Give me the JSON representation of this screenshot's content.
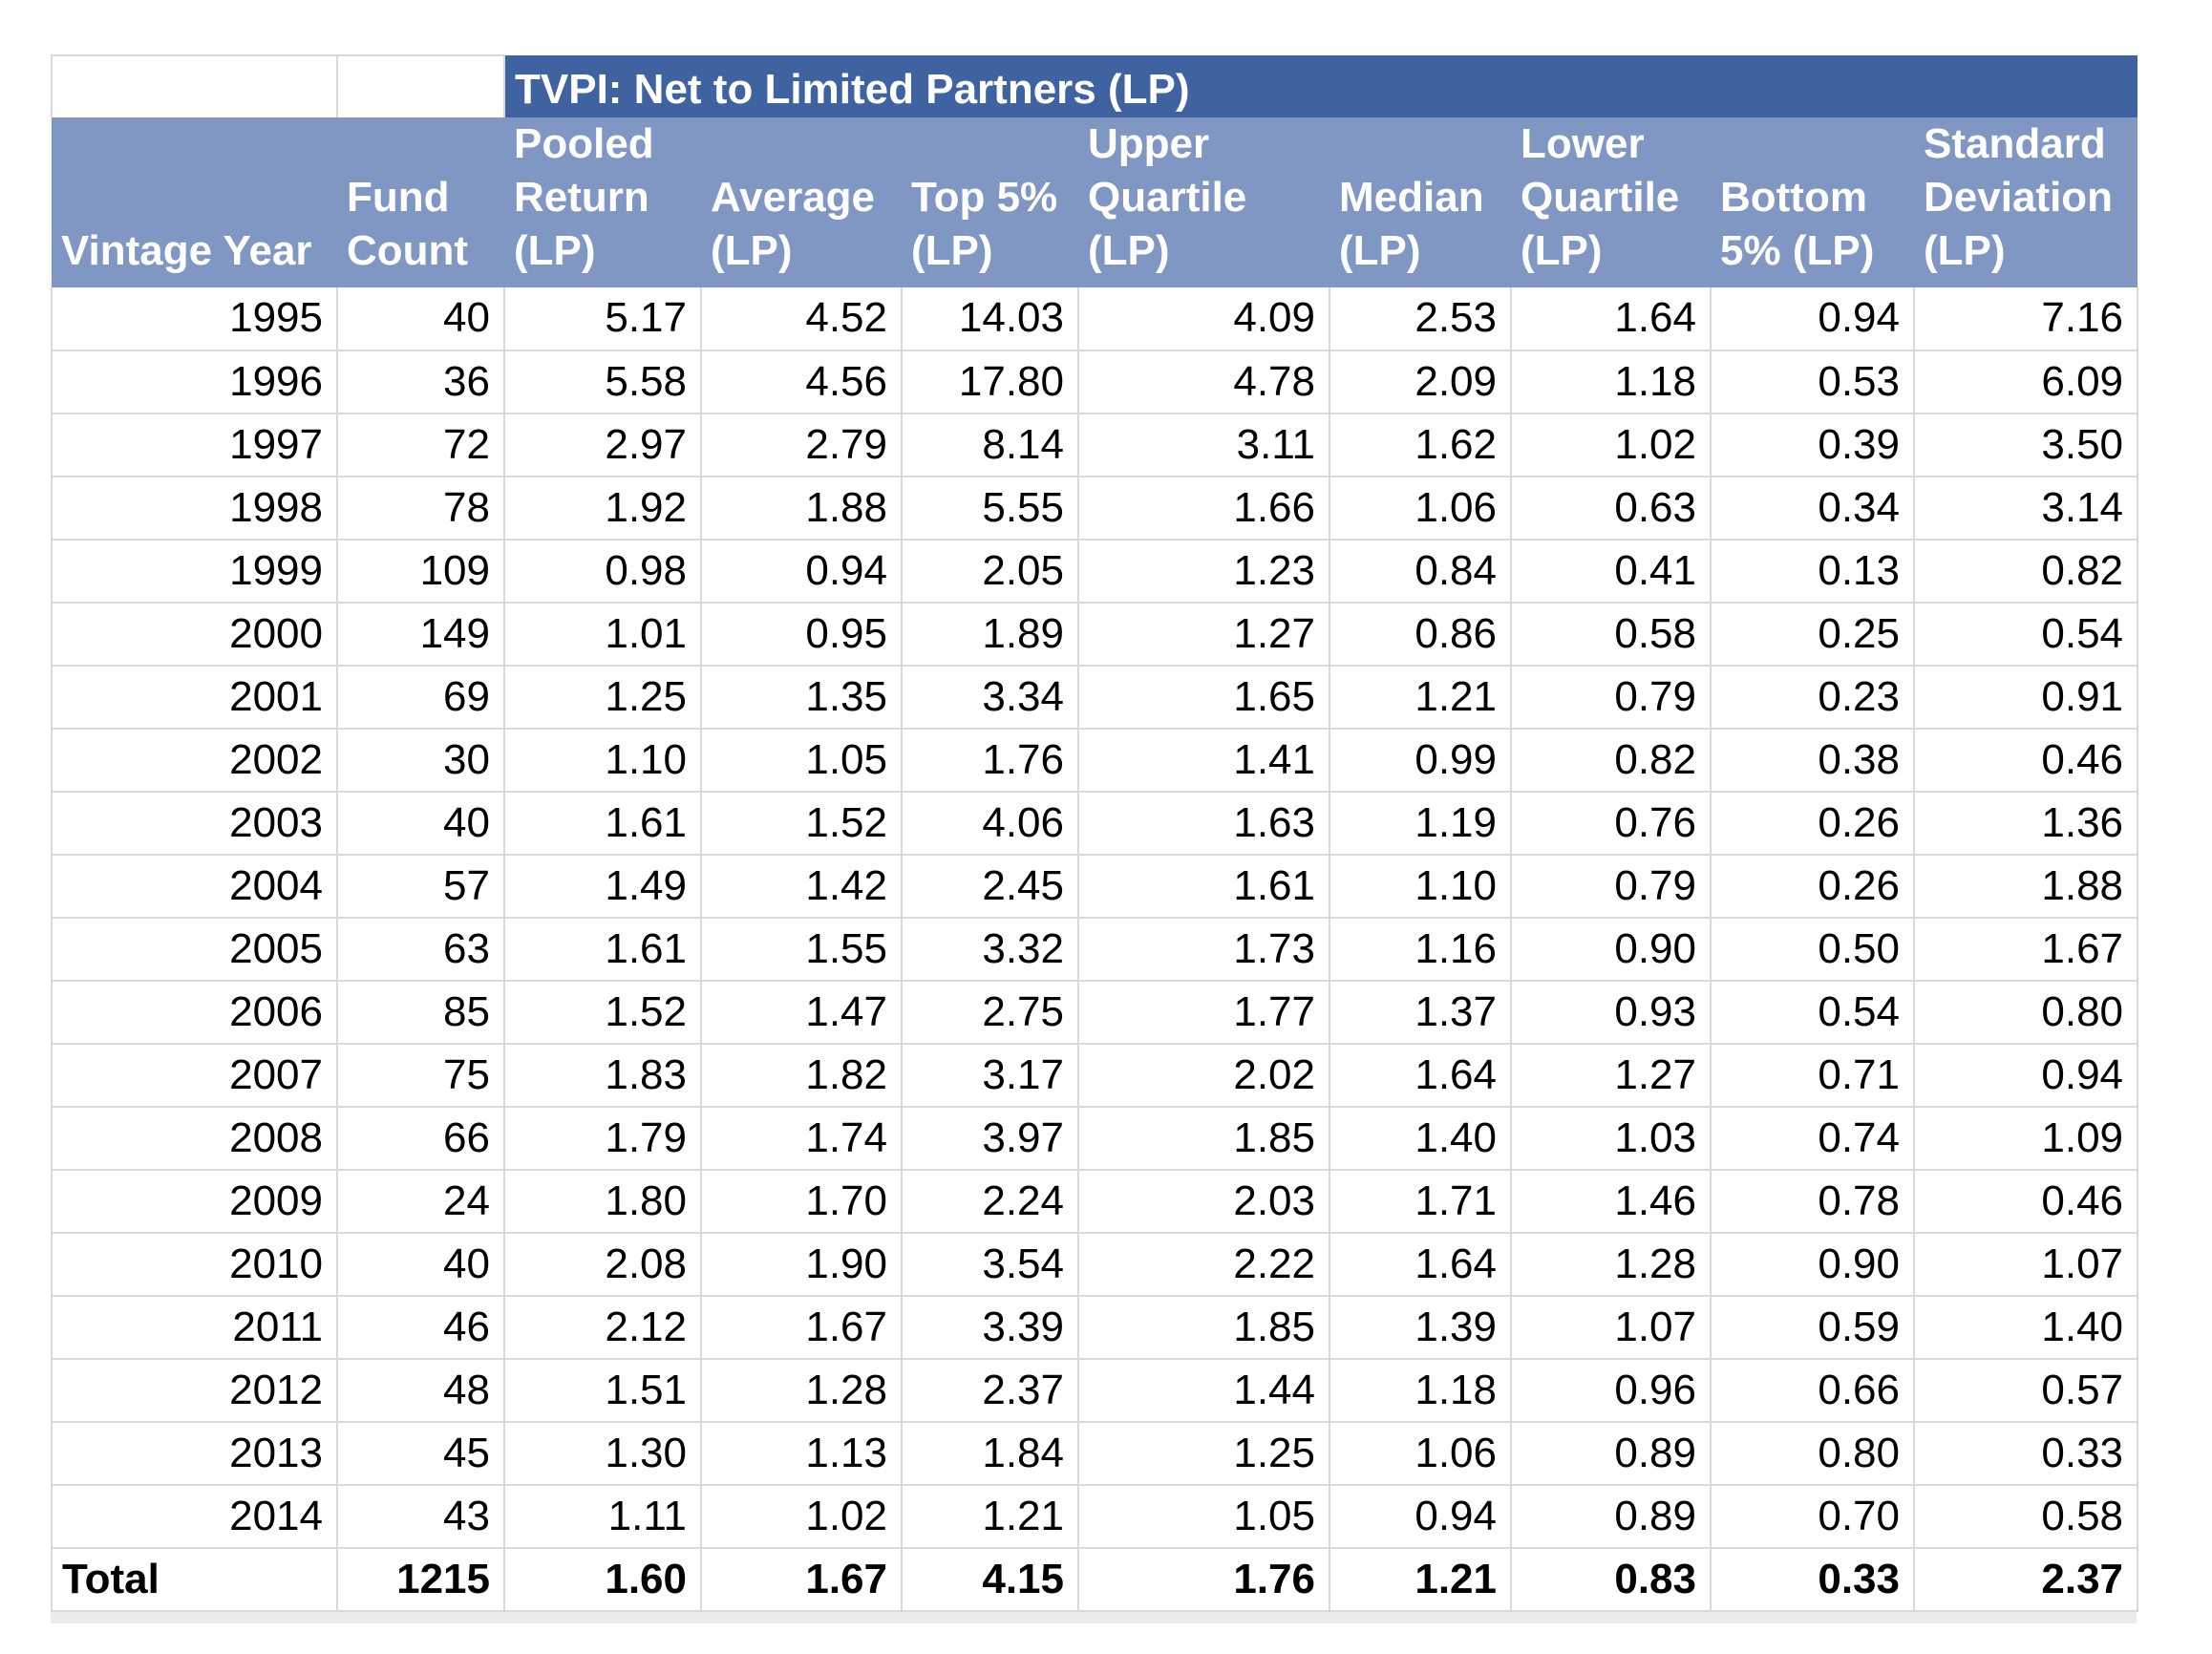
{
  "table": {
    "title": "TVPI: Net to Limited Partners (LP)",
    "columns": [
      {
        "key": "vintage_year",
        "label": "Vintage Year"
      },
      {
        "key": "fund_count",
        "label": "Fund Count"
      },
      {
        "key": "pooled_return_lp",
        "label": "Pooled Return (LP)"
      },
      {
        "key": "average_lp",
        "label": "Average (LP)"
      },
      {
        "key": "top_5_lp",
        "label": "Top 5% (LP)"
      },
      {
        "key": "upper_quartile_lp",
        "label": "Upper Quartile (LP)"
      },
      {
        "key": "median_lp",
        "label": "Median (LP)"
      },
      {
        "key": "lower_quartile_lp",
        "label": "Lower Quartile (LP)"
      },
      {
        "key": "bottom_5_lp",
        "label": "Bottom 5% (LP)"
      },
      {
        "key": "standard_deviation_lp",
        "label": "Standard Deviation (LP)"
      }
    ],
    "rows": [
      [
        "1995",
        "40",
        "5.17",
        "4.52",
        "14.03",
        "4.09",
        "2.53",
        "1.64",
        "0.94",
        "7.16"
      ],
      [
        "1996",
        "36",
        "5.58",
        "4.56",
        "17.80",
        "4.78",
        "2.09",
        "1.18",
        "0.53",
        "6.09"
      ],
      [
        "1997",
        "72",
        "2.97",
        "2.79",
        "8.14",
        "3.11",
        "1.62",
        "1.02",
        "0.39",
        "3.50"
      ],
      [
        "1998",
        "78",
        "1.92",
        "1.88",
        "5.55",
        "1.66",
        "1.06",
        "0.63",
        "0.34",
        "3.14"
      ],
      [
        "1999",
        "109",
        "0.98",
        "0.94",
        "2.05",
        "1.23",
        "0.84",
        "0.41",
        "0.13",
        "0.82"
      ],
      [
        "2000",
        "149",
        "1.01",
        "0.95",
        "1.89",
        "1.27",
        "0.86",
        "0.58",
        "0.25",
        "0.54"
      ],
      [
        "2001",
        "69",
        "1.25",
        "1.35",
        "3.34",
        "1.65",
        "1.21",
        "0.79",
        "0.23",
        "0.91"
      ],
      [
        "2002",
        "30",
        "1.10",
        "1.05",
        "1.76",
        "1.41",
        "0.99",
        "0.82",
        "0.38",
        "0.46"
      ],
      [
        "2003",
        "40",
        "1.61",
        "1.52",
        "4.06",
        "1.63",
        "1.19",
        "0.76",
        "0.26",
        "1.36"
      ],
      [
        "2004",
        "57",
        "1.49",
        "1.42",
        "2.45",
        "1.61",
        "1.10",
        "0.79",
        "0.26",
        "1.88"
      ],
      [
        "2005",
        "63",
        "1.61",
        "1.55",
        "3.32",
        "1.73",
        "1.16",
        "0.90",
        "0.50",
        "1.67"
      ],
      [
        "2006",
        "85",
        "1.52",
        "1.47",
        "2.75",
        "1.77",
        "1.37",
        "0.93",
        "0.54",
        "0.80"
      ],
      [
        "2007",
        "75",
        "1.83",
        "1.82",
        "3.17",
        "2.02",
        "1.64",
        "1.27",
        "0.71",
        "0.94"
      ],
      [
        "2008",
        "66",
        "1.79",
        "1.74",
        "3.97",
        "1.85",
        "1.40",
        "1.03",
        "0.74",
        "1.09"
      ],
      [
        "2009",
        "24",
        "1.80",
        "1.70",
        "2.24",
        "2.03",
        "1.71",
        "1.46",
        "0.78",
        "0.46"
      ],
      [
        "2010",
        "40",
        "2.08",
        "1.90",
        "3.54",
        "2.22",
        "1.64",
        "1.28",
        "0.90",
        "1.07"
      ],
      [
        "2011",
        "46",
        "2.12",
        "1.67",
        "3.39",
        "1.85",
        "1.39",
        "1.07",
        "0.59",
        "1.40"
      ],
      [
        "2012",
        "48",
        "1.51",
        "1.28",
        "2.37",
        "1.44",
        "1.18",
        "0.96",
        "0.66",
        "0.57"
      ],
      [
        "2013",
        "45",
        "1.30",
        "1.13",
        "1.84",
        "1.25",
        "1.06",
        "0.89",
        "0.80",
        "0.33"
      ],
      [
        "2014",
        "43",
        "1.11",
        "1.02",
        "1.21",
        "1.05",
        "0.94",
        "0.89",
        "0.70",
        "0.58"
      ]
    ],
    "total": [
      "Total",
      "1215",
      "1.60",
      "1.67",
      "4.15",
      "1.76",
      "1.21",
      "0.83",
      "0.33",
      "2.37"
    ]
  },
  "colors": {
    "title_bg": "#3f62a0",
    "header_bg": "#8097c3",
    "header_text": "#ffffff",
    "grid": "#d9d9d9",
    "body_text": "#000000"
  },
  "chart_data": {
    "type": "table",
    "title": "TVPI: Net to Limited Partners (LP)",
    "columns": [
      "Vintage Year",
      "Fund Count",
      "Pooled Return (LP)",
      "Average (LP)",
      "Top 5% (LP)",
      "Upper Quartile (LP)",
      "Median (LP)",
      "Lower Quartile (LP)",
      "Bottom 5% (LP)",
      "Standard Deviation (LP)"
    ],
    "rows": [
      [
        1995,
        40,
        5.17,
        4.52,
        14.03,
        4.09,
        2.53,
        1.64,
        0.94,
        7.16
      ],
      [
        1996,
        36,
        5.58,
        4.56,
        17.8,
        4.78,
        2.09,
        1.18,
        0.53,
        6.09
      ],
      [
        1997,
        72,
        2.97,
        2.79,
        8.14,
        3.11,
        1.62,
        1.02,
        0.39,
        3.5
      ],
      [
        1998,
        78,
        1.92,
        1.88,
        5.55,
        1.66,
        1.06,
        0.63,
        0.34,
        3.14
      ],
      [
        1999,
        109,
        0.98,
        0.94,
        2.05,
        1.23,
        0.84,
        0.41,
        0.13,
        0.82
      ],
      [
        2000,
        149,
        1.01,
        0.95,
        1.89,
        1.27,
        0.86,
        0.58,
        0.25,
        0.54
      ],
      [
        2001,
        69,
        1.25,
        1.35,
        3.34,
        1.65,
        1.21,
        0.79,
        0.23,
        0.91
      ],
      [
        2002,
        30,
        1.1,
        1.05,
        1.76,
        1.41,
        0.99,
        0.82,
        0.38,
        0.46
      ],
      [
        2003,
        40,
        1.61,
        1.52,
        4.06,
        1.63,
        1.19,
        0.76,
        0.26,
        1.36
      ],
      [
        2004,
        57,
        1.49,
        1.42,
        2.45,
        1.61,
        1.1,
        0.79,
        0.26,
        1.88
      ],
      [
        2005,
        63,
        1.61,
        1.55,
        3.32,
        1.73,
        1.16,
        0.9,
        0.5,
        1.67
      ],
      [
        2006,
        85,
        1.52,
        1.47,
        2.75,
        1.77,
        1.37,
        0.93,
        0.54,
        0.8
      ],
      [
        2007,
        75,
        1.83,
        1.82,
        3.17,
        2.02,
        1.64,
        1.27,
        0.71,
        0.94
      ],
      [
        2008,
        66,
        1.79,
        1.74,
        3.97,
        1.85,
        1.4,
        1.03,
        0.74,
        1.09
      ],
      [
        2009,
        24,
        1.8,
        1.7,
        2.24,
        2.03,
        1.71,
        1.46,
        0.78,
        0.46
      ],
      [
        2010,
        40,
        2.08,
        1.9,
        3.54,
        2.22,
        1.64,
        1.28,
        0.9,
        1.07
      ],
      [
        2011,
        46,
        2.12,
        1.67,
        3.39,
        1.85,
        1.39,
        1.07,
        0.59,
        1.4
      ],
      [
        2012,
        48,
        1.51,
        1.28,
        2.37,
        1.44,
        1.18,
        0.96,
        0.66,
        0.57
      ],
      [
        2013,
        45,
        1.3,
        1.13,
        1.84,
        1.25,
        1.06,
        0.89,
        0.8,
        0.33
      ],
      [
        2014,
        43,
        1.11,
        1.02,
        1.21,
        1.05,
        0.94,
        0.89,
        0.7,
        0.58
      ]
    ],
    "total_row": [
      "Total",
      1215,
      1.6,
      1.67,
      4.15,
      1.76,
      1.21,
      0.83,
      0.33,
      2.37
    ]
  }
}
